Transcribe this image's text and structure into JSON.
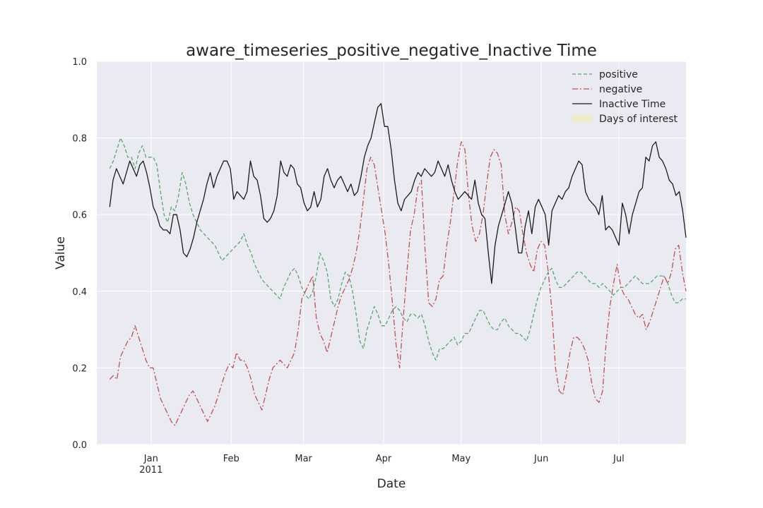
{
  "chart_data": {
    "type": "line",
    "title": "aware_timeseries_positive_negative_Inactive Time",
    "xlabel": "Date",
    "ylabel": "Value",
    "ylim": [
      0.0,
      1.0
    ],
    "xlim": [
      "2010-12-11",
      "2011-07-27"
    ],
    "grid": true,
    "legend_position": "top-right",
    "y_ticks": [
      "0.0",
      "0.2",
      "0.4",
      "0.6",
      "0.8",
      "1.0"
    ],
    "x_ticks": [
      {
        "date": "2011-01-01",
        "label": "Jan",
        "sublabel": "2011"
      },
      {
        "date": "2011-02-01",
        "label": "Feb",
        "sublabel": ""
      },
      {
        "date": "2011-03-01",
        "label": "Mar",
        "sublabel": ""
      },
      {
        "date": "2011-04-01",
        "label": "Apr",
        "sublabel": ""
      },
      {
        "date": "2011-05-01",
        "label": "May",
        "sublabel": ""
      },
      {
        "date": "2011-06-01",
        "label": "Jun",
        "sublabel": ""
      },
      {
        "date": "2011-07-01",
        "label": "Jul",
        "sublabel": ""
      }
    ],
    "x_start": "2010-12-16",
    "x_end": "2011-07-27",
    "series": [
      {
        "name": "positive",
        "color": "#55a868",
        "dash": "dashed",
        "values": [
          0.72,
          0.74,
          0.77,
          0.8,
          0.78,
          0.75,
          0.75,
          0.72,
          0.76,
          0.78,
          0.75,
          0.75,
          0.75,
          0.73,
          0.66,
          0.6,
          0.58,
          0.62,
          0.61,
          0.65,
          0.71,
          0.68,
          0.63,
          0.6,
          0.58,
          0.56,
          0.55,
          0.54,
          0.53,
          0.52,
          0.5,
          0.48,
          0.49,
          0.5,
          0.51,
          0.52,
          0.53,
          0.55,
          0.52,
          0.5,
          0.47,
          0.45,
          0.43,
          0.42,
          0.41,
          0.4,
          0.39,
          0.38,
          0.41,
          0.43,
          0.45,
          0.46,
          0.44,
          0.41,
          0.39,
          0.38,
          0.4,
          0.44,
          0.5,
          0.48,
          0.45,
          0.38,
          0.36,
          0.38,
          0.42,
          0.45,
          0.44,
          0.4,
          0.34,
          0.27,
          0.25,
          0.3,
          0.33,
          0.36,
          0.34,
          0.31,
          0.31,
          0.33,
          0.35,
          0.36,
          0.35,
          0.33,
          0.32,
          0.34,
          0.34,
          0.33,
          0.34,
          0.31,
          0.27,
          0.24,
          0.22,
          0.25,
          0.25,
          0.26,
          0.27,
          0.28,
          0.26,
          0.27,
          0.29,
          0.29,
          0.31,
          0.33,
          0.35,
          0.35,
          0.33,
          0.31,
          0.3,
          0.3,
          0.32,
          0.33,
          0.31,
          0.3,
          0.29,
          0.29,
          0.28,
          0.27,
          0.3,
          0.34,
          0.38,
          0.41,
          0.43,
          0.45,
          0.46,
          0.43,
          0.41,
          0.41,
          0.42,
          0.43,
          0.44,
          0.45,
          0.45,
          0.44,
          0.43,
          0.42,
          0.42,
          0.41,
          0.42,
          0.41,
          0.4,
          0.39,
          0.4,
          0.41,
          0.41,
          0.42,
          0.43,
          0.44,
          0.43,
          0.42,
          0.42,
          0.42,
          0.43,
          0.44,
          0.44,
          0.44,
          0.42,
          0.39,
          0.37,
          0.37,
          0.38,
          0.38
        ]
      },
      {
        "name": "negative",
        "color": "#c44e52",
        "dash": "dashdot",
        "values": [
          0.17,
          0.18,
          0.17,
          0.23,
          0.25,
          0.27,
          0.28,
          0.31,
          0.28,
          0.25,
          0.22,
          0.2,
          0.2,
          0.16,
          0.12,
          0.1,
          0.08,
          0.06,
          0.05,
          0.07,
          0.09,
          0.11,
          0.13,
          0.14,
          0.12,
          0.1,
          0.08,
          0.06,
          0.08,
          0.1,
          0.13,
          0.16,
          0.19,
          0.21,
          0.2,
          0.24,
          0.22,
          0.22,
          0.2,
          0.17,
          0.13,
          0.11,
          0.09,
          0.13,
          0.17,
          0.2,
          0.21,
          0.22,
          0.21,
          0.2,
          0.22,
          0.24,
          0.3,
          0.38,
          0.4,
          0.42,
          0.44,
          0.33,
          0.29,
          0.27,
          0.24,
          0.28,
          0.32,
          0.36,
          0.39,
          0.41,
          0.43,
          0.46,
          0.5,
          0.56,
          0.64,
          0.72,
          0.75,
          0.73,
          0.67,
          0.61,
          0.55,
          0.47,
          0.37,
          0.26,
          0.2,
          0.33,
          0.45,
          0.56,
          0.6,
          0.67,
          0.69,
          0.51,
          0.37,
          0.36,
          0.38,
          0.43,
          0.44,
          0.52,
          0.58,
          0.66,
          0.74,
          0.79,
          0.77,
          0.65,
          0.57,
          0.53,
          0.55,
          0.6,
          0.68,
          0.75,
          0.77,
          0.76,
          0.73,
          0.6,
          0.55,
          0.58,
          0.62,
          0.61,
          0.55,
          0.5,
          0.47,
          0.45,
          0.51,
          0.53,
          0.52,
          0.45,
          0.35,
          0.2,
          0.14,
          0.13,
          0.18,
          0.24,
          0.28,
          0.28,
          0.27,
          0.25,
          0.22,
          0.16,
          0.12,
          0.11,
          0.14,
          0.27,
          0.36,
          0.42,
          0.47,
          0.41,
          0.39,
          0.38,
          0.36,
          0.34,
          0.33,
          0.34,
          0.3,
          0.32,
          0.35,
          0.38,
          0.41,
          0.44,
          0.42,
          0.45,
          0.51,
          0.52,
          0.45,
          0.4
        ]
      },
      {
        "name": "Inactive Time",
        "color": "#1a1a1a",
        "dash": "solid",
        "values": [
          0.62,
          0.69,
          0.72,
          0.7,
          0.68,
          0.71,
          0.74,
          0.72,
          0.7,
          0.73,
          0.74,
          0.71,
          0.67,
          0.62,
          0.6,
          0.57,
          0.56,
          0.56,
          0.55,
          0.6,
          0.6,
          0.56,
          0.5,
          0.49,
          0.51,
          0.54,
          0.58,
          0.61,
          0.64,
          0.68,
          0.71,
          0.67,
          0.7,
          0.72,
          0.74,
          0.74,
          0.72,
          0.64,
          0.66,
          0.65,
          0.64,
          0.66,
          0.74,
          0.7,
          0.69,
          0.65,
          0.59,
          0.58,
          0.59,
          0.61,
          0.65,
          0.74,
          0.71,
          0.7,
          0.73,
          0.72,
          0.68,
          0.67,
          0.63,
          0.61,
          0.62,
          0.66,
          0.62,
          0.64,
          0.7,
          0.72,
          0.69,
          0.67,
          0.69,
          0.7,
          0.68,
          0.66,
          0.68,
          0.65,
          0.66,
          0.7,
          0.75,
          0.78,
          0.8,
          0.84,
          0.88,
          0.89,
          0.83,
          0.83,
          0.77,
          0.69,
          0.63,
          0.61,
          0.64,
          0.65,
          0.66,
          0.69,
          0.71,
          0.7,
          0.72,
          0.71,
          0.7,
          0.71,
          0.74,
          0.72,
          0.7,
          0.73,
          0.69,
          0.66,
          0.64,
          0.65,
          0.66,
          0.65,
          0.64,
          0.69,
          0.63,
          0.6,
          0.59,
          0.5,
          0.42,
          0.52,
          0.57,
          0.6,
          0.63,
          0.66,
          0.63,
          0.57,
          0.5,
          0.5,
          0.57,
          0.61,
          0.55,
          0.62,
          0.64,
          0.62,
          0.6,
          0.52,
          0.61,
          0.63,
          0.65,
          0.64,
          0.66,
          0.67,
          0.7,
          0.72,
          0.74,
          0.73,
          0.66,
          0.64,
          0.63,
          0.62,
          0.6,
          0.65,
          0.56,
          0.57,
          0.56,
          0.54,
          0.52,
          0.63,
          0.6,
          0.55,
          0.6,
          0.63,
          0.66,
          0.67,
          0.75,
          0.74,
          0.78,
          0.79,
          0.75,
          0.74,
          0.72,
          0.69,
          0.68,
          0.65,
          0.66,
          0.61,
          0.54
        ]
      }
    ],
    "legend": [
      {
        "label": "positive",
        "color": "#55a868",
        "style": "dashed"
      },
      {
        "label": "negative",
        "color": "#c44e52",
        "style": "dashdot"
      },
      {
        "label": "Inactive Time",
        "color": "#1a1a1a",
        "style": "solid"
      },
      {
        "label": "Days of interest",
        "color": "#eeebc6",
        "style": "patch"
      }
    ]
  }
}
